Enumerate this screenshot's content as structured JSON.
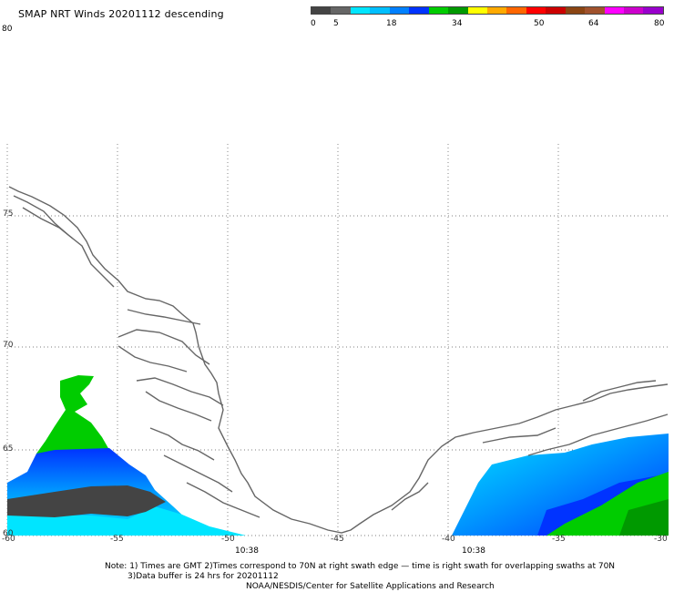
{
  "header": {
    "title": "SMAP NRT Winds  20201112 descending"
  },
  "colorbar": {
    "labels": [
      "0",
      "5",
      "18",
      "34",
      "50",
      "64",
      "80"
    ],
    "segments": [
      "#444444",
      "#666666",
      "#00e5ff",
      "#00bfff",
      "#0080ff",
      "#0033ff",
      "#00cc00",
      "#009900",
      "#ffff00",
      "#ffaa00",
      "#ff6600",
      "#ff0000",
      "#cc0000",
      "#8b4513",
      "#a0522d",
      "#ff00ff",
      "#cc00cc",
      "#9900cc"
    ]
  },
  "map": {
    "top_lat_label": "80",
    "lat_labels": [
      "75",
      "70",
      "65",
      "60"
    ],
    "lon_labels": [
      "-60",
      "-55",
      "-50",
      "-45",
      "-40",
      "-35",
      "-30"
    ],
    "time_labels": [
      "10:38",
      "10:38"
    ]
  },
  "footer": {
    "line1": "Note: 1) Times are GMT 2)Times correspond to 70N at right swath edge — time is right swath for overlapping swaths at 70N",
    "line2": "3)Data buffer is 24 hrs for 20201112",
    "line3": "NOAA/NESDIS/Center for Satellite Applications and Research"
  }
}
